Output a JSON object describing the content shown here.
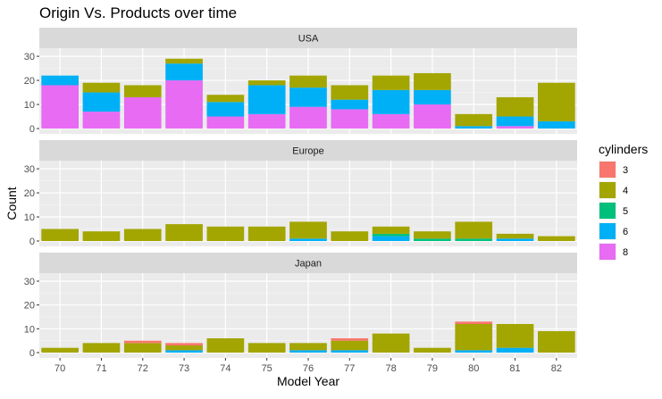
{
  "chart_data": {
    "type": "bar",
    "stacked": true,
    "title": "Origin Vs. Products over time",
    "xlabel": "Model Year",
    "ylabel": "Count",
    "ylim": [
      0,
      33
    ],
    "y_ticks": [
      0,
      10,
      20,
      30
    ],
    "categories": [
      "70",
      "71",
      "72",
      "73",
      "74",
      "75",
      "76",
      "77",
      "78",
      "79",
      "80",
      "81",
      "82"
    ],
    "legend": {
      "title": "cylinders",
      "position": "right",
      "entries": [
        {
          "label": "3",
          "color": "#F8766D"
        },
        {
          "label": "4",
          "color": "#A3A500"
        },
        {
          "label": "5",
          "color": "#00BF7D"
        },
        {
          "label": "6",
          "color": "#00B0F6"
        },
        {
          "label": "8",
          "color": "#E76BF3"
        }
      ]
    },
    "stack_order_bottom_to_top": [
      "8",
      "6",
      "5",
      "4",
      "3"
    ],
    "grid": true,
    "panels": [
      {
        "label": "USA",
        "series": [
          {
            "name": "3",
            "values": [
              0,
              0,
              0,
              0,
              0,
              0,
              0,
              0,
              0,
              0,
              0,
              0,
              0
            ]
          },
          {
            "name": "4",
            "values": [
              0,
              4,
              5,
              2,
              3,
              2,
              5,
              6,
              6,
              7,
              5,
              8,
              16
            ]
          },
          {
            "name": "5",
            "values": [
              0,
              0,
              0,
              0,
              0,
              0,
              0,
              0,
              0,
              0,
              0,
              0,
              0
            ]
          },
          {
            "name": "6",
            "values": [
              4,
              8,
              0,
              7,
              6,
              12,
              8,
              4,
              10,
              6,
              1,
              4,
              3
            ]
          },
          {
            "name": "8",
            "values": [
              18,
              7,
              13,
              20,
              5,
              6,
              9,
              8,
              6,
              10,
              0,
              1,
              0
            ]
          }
        ]
      },
      {
        "label": "Europe",
        "series": [
          {
            "name": "3",
            "values": [
              0,
              0,
              0,
              0,
              0,
              0,
              0,
              0,
              0,
              0,
              0,
              0,
              0
            ]
          },
          {
            "name": "4",
            "values": [
              5,
              4,
              5,
              7,
              6,
              6,
              7,
              4,
              3,
              3,
              7,
              2,
              2
            ]
          },
          {
            "name": "5",
            "values": [
              0,
              0,
              0,
              0,
              0,
              0,
              0,
              0,
              1,
              1,
              1,
              0,
              0
            ]
          },
          {
            "name": "6",
            "values": [
              0,
              0,
              0,
              0,
              0,
              0,
              1,
              0,
              2,
              0,
              0,
              1,
              0
            ]
          },
          {
            "name": "8",
            "values": [
              0,
              0,
              0,
              0,
              0,
              0,
              0,
              0,
              0,
              0,
              0,
              0,
              0
            ]
          }
        ]
      },
      {
        "label": "Japan",
        "series": [
          {
            "name": "3",
            "values": [
              0,
              0,
              1,
              1,
              0,
              0,
              0,
              1,
              0,
              0,
              1,
              0,
              0
            ]
          },
          {
            "name": "4",
            "values": [
              2,
              4,
              4,
              2,
              6,
              4,
              3,
              4,
              8,
              2,
              11,
              10,
              9
            ]
          },
          {
            "name": "5",
            "values": [
              0,
              0,
              0,
              0,
              0,
              0,
              0,
              0,
              0,
              0,
              0,
              0,
              0
            ]
          },
          {
            "name": "6",
            "values": [
              0,
              0,
              0,
              1,
              0,
              0,
              1,
              1,
              0,
              0,
              1,
              2,
              0
            ]
          },
          {
            "name": "8",
            "values": [
              0,
              0,
              0,
              0,
              0,
              0,
              0,
              0,
              0,
              0,
              0,
              0,
              0
            ]
          }
        ]
      }
    ],
    "colors": {
      "panel_background": "#EBEBEB",
      "strip_background": "#D9D9D9",
      "grid_major": "#FFFFFF",
      "text": "#4D4D4D"
    }
  }
}
